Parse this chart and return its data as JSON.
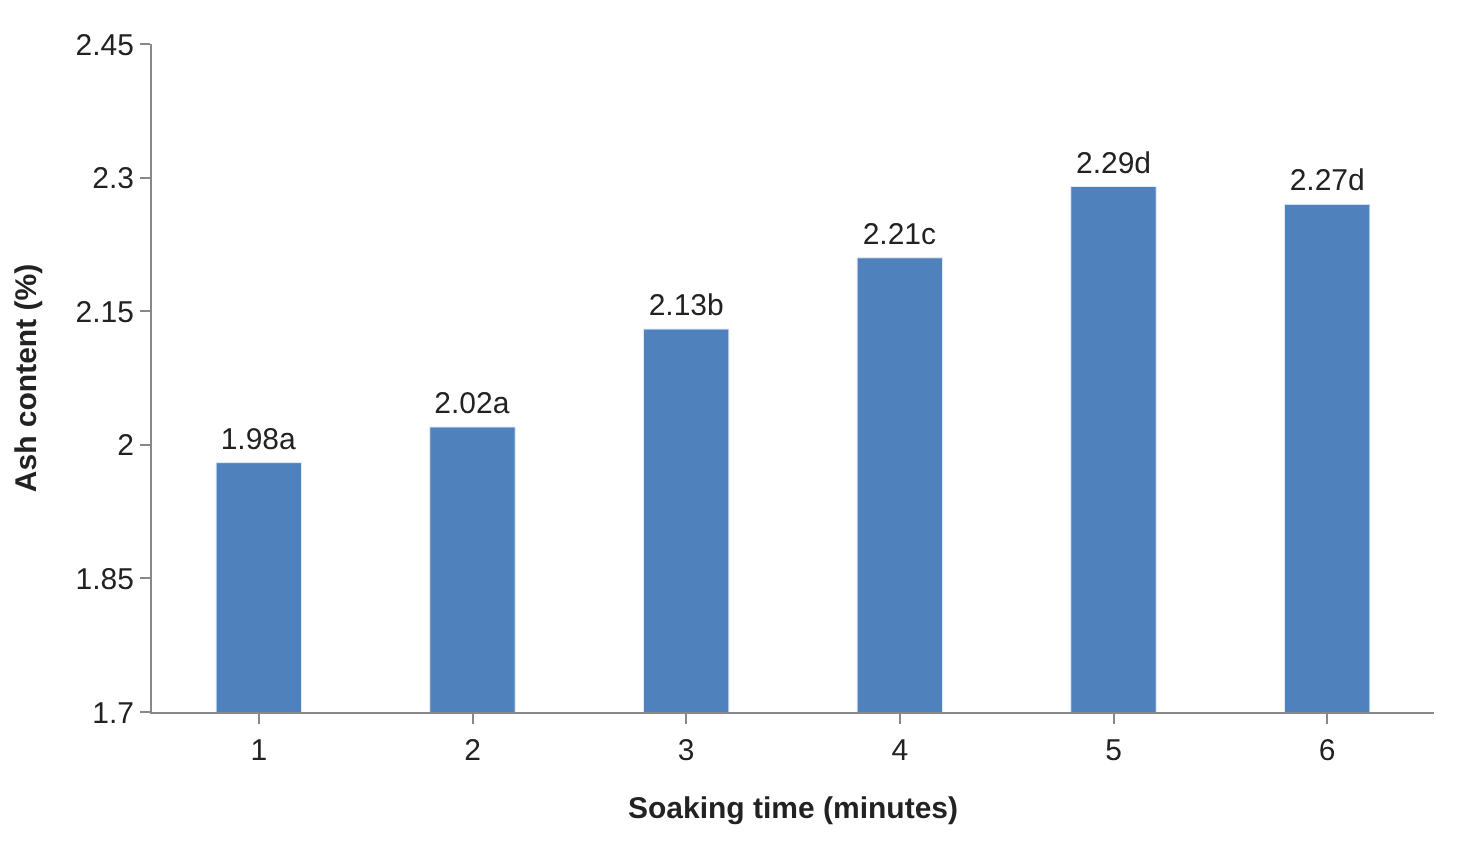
{
  "chart_data": {
    "type": "bar",
    "xlabel": "Soaking time (minutes)",
    "ylabel": "Ash content (%)",
    "categories": [
      "1",
      "2",
      "3",
      "4",
      "5",
      "6"
    ],
    "values": [
      1.98,
      2.02,
      2.13,
      2.21,
      2.29,
      2.27
    ],
    "value_labels": [
      "1.98a",
      "2.02a",
      "2.13b",
      "2.21c",
      "2.29d",
      "2.27d"
    ],
    "color": "#4f81bd",
    "ylim": [
      1.7,
      2.45
    ],
    "yticks": [
      1.7,
      1.85,
      2,
      2.15,
      2.3,
      2.45
    ],
    "legend": false
  }
}
